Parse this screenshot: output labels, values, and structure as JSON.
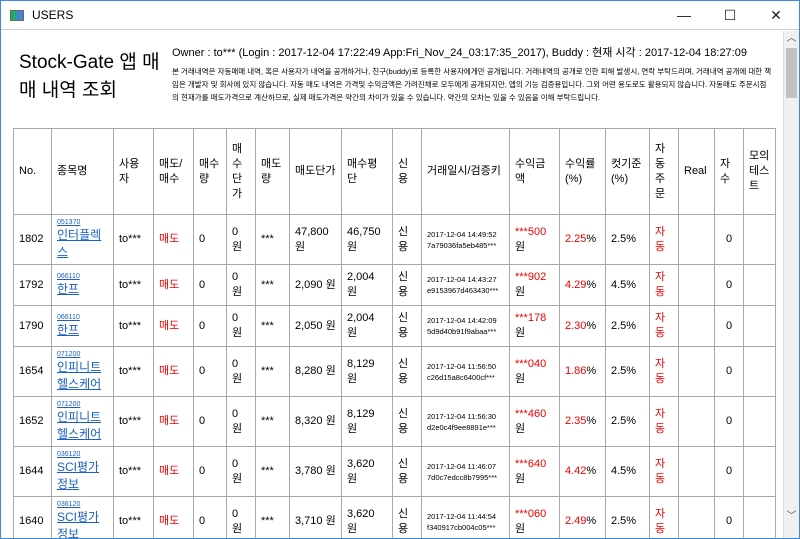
{
  "window": {
    "title": "USERS",
    "minimize": "—",
    "maximize": "☐",
    "close": "✕"
  },
  "header": {
    "title": "Stock-Gate 앱 매매 내역 조회",
    "owner_line": "Owner : to*** (Login : 2017-12-04 17:22:49 App:Fri_Nov_24_03:17:35_2017), Buddy :   현재 시각 : 2017-12-04 18:27:09",
    "notice": "본 거래내역은 자동매매 내역, 혹은 사용자가 내역을 공개하거나, 친구(buddy)로 등록한 사용자에게만 공개됩니다. 거래내역의 공개로 인한 피해 발생시, 연락 부탁드리며, 거래내역 공개에 대한 책임은 개발자 및 회사에 있지 않습니다. 자동 매도 내역은 가격및 수익금액은 가려진채로 모두에게 공개되지만, 앱의 기능 검증용입니다. 그외 어떤 용도로도 활용되지 않습니다. 자동매도 주문시점의 현재가를 매도가격으로 계산하므로, 실제 매도가격은 약간의 차이가 있을 수 있습니다. 약간의 오차는 있을 수 있음을 이해 부탁드립니다."
  },
  "table": {
    "columns": [
      "No.",
      "종목명",
      "사용자",
      "매도/매수",
      "매수량",
      "매수단가",
      "매도량",
      "매도단가",
      "매수평단",
      "신용",
      "거래일시/검증키",
      "수익금액",
      "수익률(%)",
      "컷기준(%)",
      "자동주문",
      "Real",
      "자수",
      "모의테스트"
    ],
    "rows": [
      {
        "no": "1802",
        "code": "051370",
        "name": "인터플렉스",
        "user": "to***",
        "side": "매도",
        "buy_qty": "0",
        "buy_price": "0 원",
        "sell_qty": "***",
        "sell_price": "47,800 원",
        "avg_price": "46,750 원",
        "credit": "신용",
        "datetime": "2017-12-04 14:49:52",
        "key": "7a79036fa5eb485***",
        "profit": "***500",
        "profit_unit": "원",
        "rate": "2.25",
        "pct": "%",
        "cut": "2.5%",
        "auto": "자동",
        "real": "",
        "count": "0",
        "mock": ""
      },
      {
        "no": "1792",
        "code": "066110",
        "name": "한프",
        "user": "to***",
        "side": "매도",
        "buy_qty": "0",
        "buy_price": "0 원",
        "sell_qty": "***",
        "sell_price": "2,090 원",
        "avg_price": "2,004 원",
        "credit": "신용",
        "datetime": "2017-12-04 14:43:27",
        "key": "e9153967d463430***",
        "profit": "***902",
        "profit_unit": "원",
        "rate": "4.29",
        "pct": "%",
        "cut": "4.5%",
        "auto": "자동",
        "real": "",
        "count": "0",
        "mock": ""
      },
      {
        "no": "1790",
        "code": "066110",
        "name": "한프",
        "user": "to***",
        "side": "매도",
        "buy_qty": "0",
        "buy_price": "0 원",
        "sell_qty": "***",
        "sell_price": "2,050 원",
        "avg_price": "2,004 원",
        "credit": "신용",
        "datetime": "2017-12-04 14:42:09",
        "key": "5d9d40b91f9abaa***",
        "profit": "***178",
        "profit_unit": "원",
        "rate": "2.30",
        "pct": "%",
        "cut": "2.5%",
        "auto": "자동",
        "real": "",
        "count": "0",
        "mock": ""
      },
      {
        "no": "1654",
        "code": "071200",
        "name": "인피니트헬스케어",
        "user": "to***",
        "side": "매도",
        "buy_qty": "0",
        "buy_price": "0 원",
        "sell_qty": "***",
        "sell_price": "8,280 원",
        "avg_price": "8,129 원",
        "credit": "신용",
        "datetime": "2017-12-04 11:56:50",
        "key": "c26d15a8c6400cf***",
        "profit": "***040",
        "profit_unit": "원",
        "rate": "1.86",
        "pct": "%",
        "cut": "2.5%",
        "auto": "자동",
        "real": "",
        "count": "0",
        "mock": ""
      },
      {
        "no": "1652",
        "code": "071200",
        "name": "인피니트헬스케어",
        "user": "to***",
        "side": "매도",
        "buy_qty": "0",
        "buy_price": "0 원",
        "sell_qty": "***",
        "sell_price": "8,320 원",
        "avg_price": "8,129 원",
        "credit": "신용",
        "datetime": "2017-12-04 11:56:30",
        "key": "d2e0c4f9ee8891e***",
        "profit": "***460",
        "profit_unit": "원",
        "rate": "2.35",
        "pct": "%",
        "cut": "2.5%",
        "auto": "자동",
        "real": "",
        "count": "0",
        "mock": ""
      },
      {
        "no": "1644",
        "code": "036120",
        "name": "SCI평가정보",
        "user": "to***",
        "side": "매도",
        "buy_qty": "0",
        "buy_price": "0 원",
        "sell_qty": "***",
        "sell_price": "3,780 원",
        "avg_price": "3,620 원",
        "credit": "신용",
        "datetime": "2017-12-04 11:46:07",
        "key": "7d0c7edcc8b7995***",
        "profit": "***640",
        "profit_unit": "원",
        "rate": "4.42",
        "pct": "%",
        "cut": "4.5%",
        "auto": "자동",
        "real": "",
        "count": "0",
        "mock": ""
      },
      {
        "no": "1640",
        "code": "036120",
        "name": "SCI평가정보",
        "user": "to***",
        "side": "매도",
        "buy_qty": "0",
        "buy_price": "0 원",
        "sell_qty": "***",
        "sell_price": "3,710 원",
        "avg_price": "3,620 원",
        "credit": "신용",
        "datetime": "2017-12-04 11:44:54",
        "key": "f340917cb004c05***",
        "profit": "***060",
        "profit_unit": "원",
        "rate": "2.49",
        "pct": "%",
        "cut": "2.5%",
        "auto": "자동",
        "real": "",
        "count": "0",
        "mock": ""
      }
    ]
  },
  "colors": {
    "accent_red": "#e00000",
    "link": "#1a5fc8",
    "window_border": "#3c8be0"
  }
}
